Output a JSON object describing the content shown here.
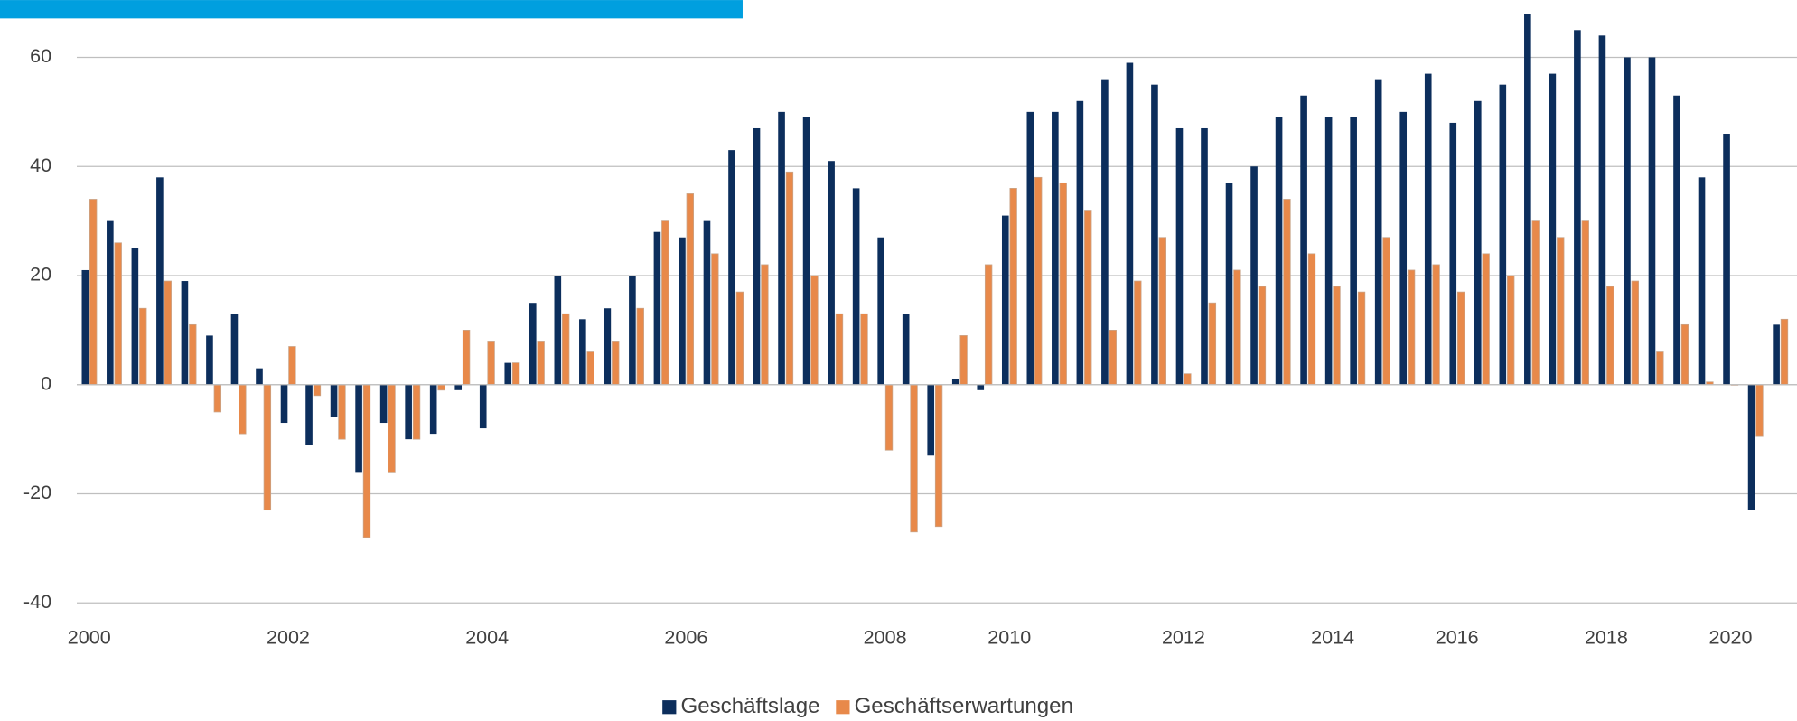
{
  "chart_data": {
    "type": "bar",
    "categories": [
      "2000",
      null,
      null,
      null,
      null,
      null,
      null,
      null,
      "2002",
      null,
      null,
      null,
      null,
      null,
      null,
      null,
      "2004",
      null,
      null,
      null,
      null,
      null,
      null,
      null,
      "2006",
      null,
      null,
      null,
      null,
      null,
      null,
      null,
      "2008",
      null,
      null,
      null,
      null,
      "2010",
      null,
      null,
      null,
      null,
      null,
      null,
      "2012",
      null,
      null,
      null,
      null,
      null,
      "2014",
      null,
      null,
      null,
      null,
      "2016",
      null,
      null,
      null,
      null,
      null,
      "2018",
      null,
      null,
      null,
      null,
      "2020",
      null,
      null
    ],
    "series": [
      {
        "name": "Geschäftslage",
        "color": "#0c2e5c",
        "values": [
          21,
          30,
          25,
          38,
          19,
          9,
          13,
          3,
          -7,
          -11,
          -6,
          -16,
          -7,
          -10,
          -9,
          -1,
          -8,
          4,
          15,
          20,
          12,
          14,
          20,
          28,
          27,
          30,
          43,
          47,
          50,
          49,
          41,
          36,
          27,
          13,
          -13,
          1,
          -1,
          31,
          50,
          50,
          52,
          56,
          59,
          55,
          47,
          47,
          37,
          40,
          49,
          53,
          49,
          49,
          56,
          50,
          57,
          48,
          52,
          55,
          68,
          57,
          65,
          64,
          60,
          60,
          53,
          38,
          46,
          -23,
          11
        ]
      },
      {
        "name": "Geschäftserwartungen",
        "color": "#e8894a",
        "values": [
          34,
          26,
          14,
          19,
          11,
          -5,
          -9,
          -23,
          7,
          -2,
          -10,
          -28,
          -16,
          -10,
          -1,
          10,
          8,
          4,
          8,
          13,
          6,
          8,
          14,
          30,
          35,
          24,
          17,
          22,
          39,
          20,
          13,
          13,
          -12,
          -27,
          -26,
          9,
          22,
          36,
          38,
          37,
          32,
          10,
          19,
          27,
          2,
          15,
          21,
          18,
          34,
          24,
          18,
          17,
          27,
          21,
          22,
          17,
          24,
          20,
          30,
          27,
          30,
          18,
          19,
          6,
          11,
          0.5,
          0,
          -9.5,
          12
        ]
      }
    ],
    "ylim": [
      -40,
      70
    ],
    "yticks": [
      -40,
      -20,
      0,
      20,
      40,
      60
    ],
    "grid": true,
    "legend": "bottom"
  }
}
